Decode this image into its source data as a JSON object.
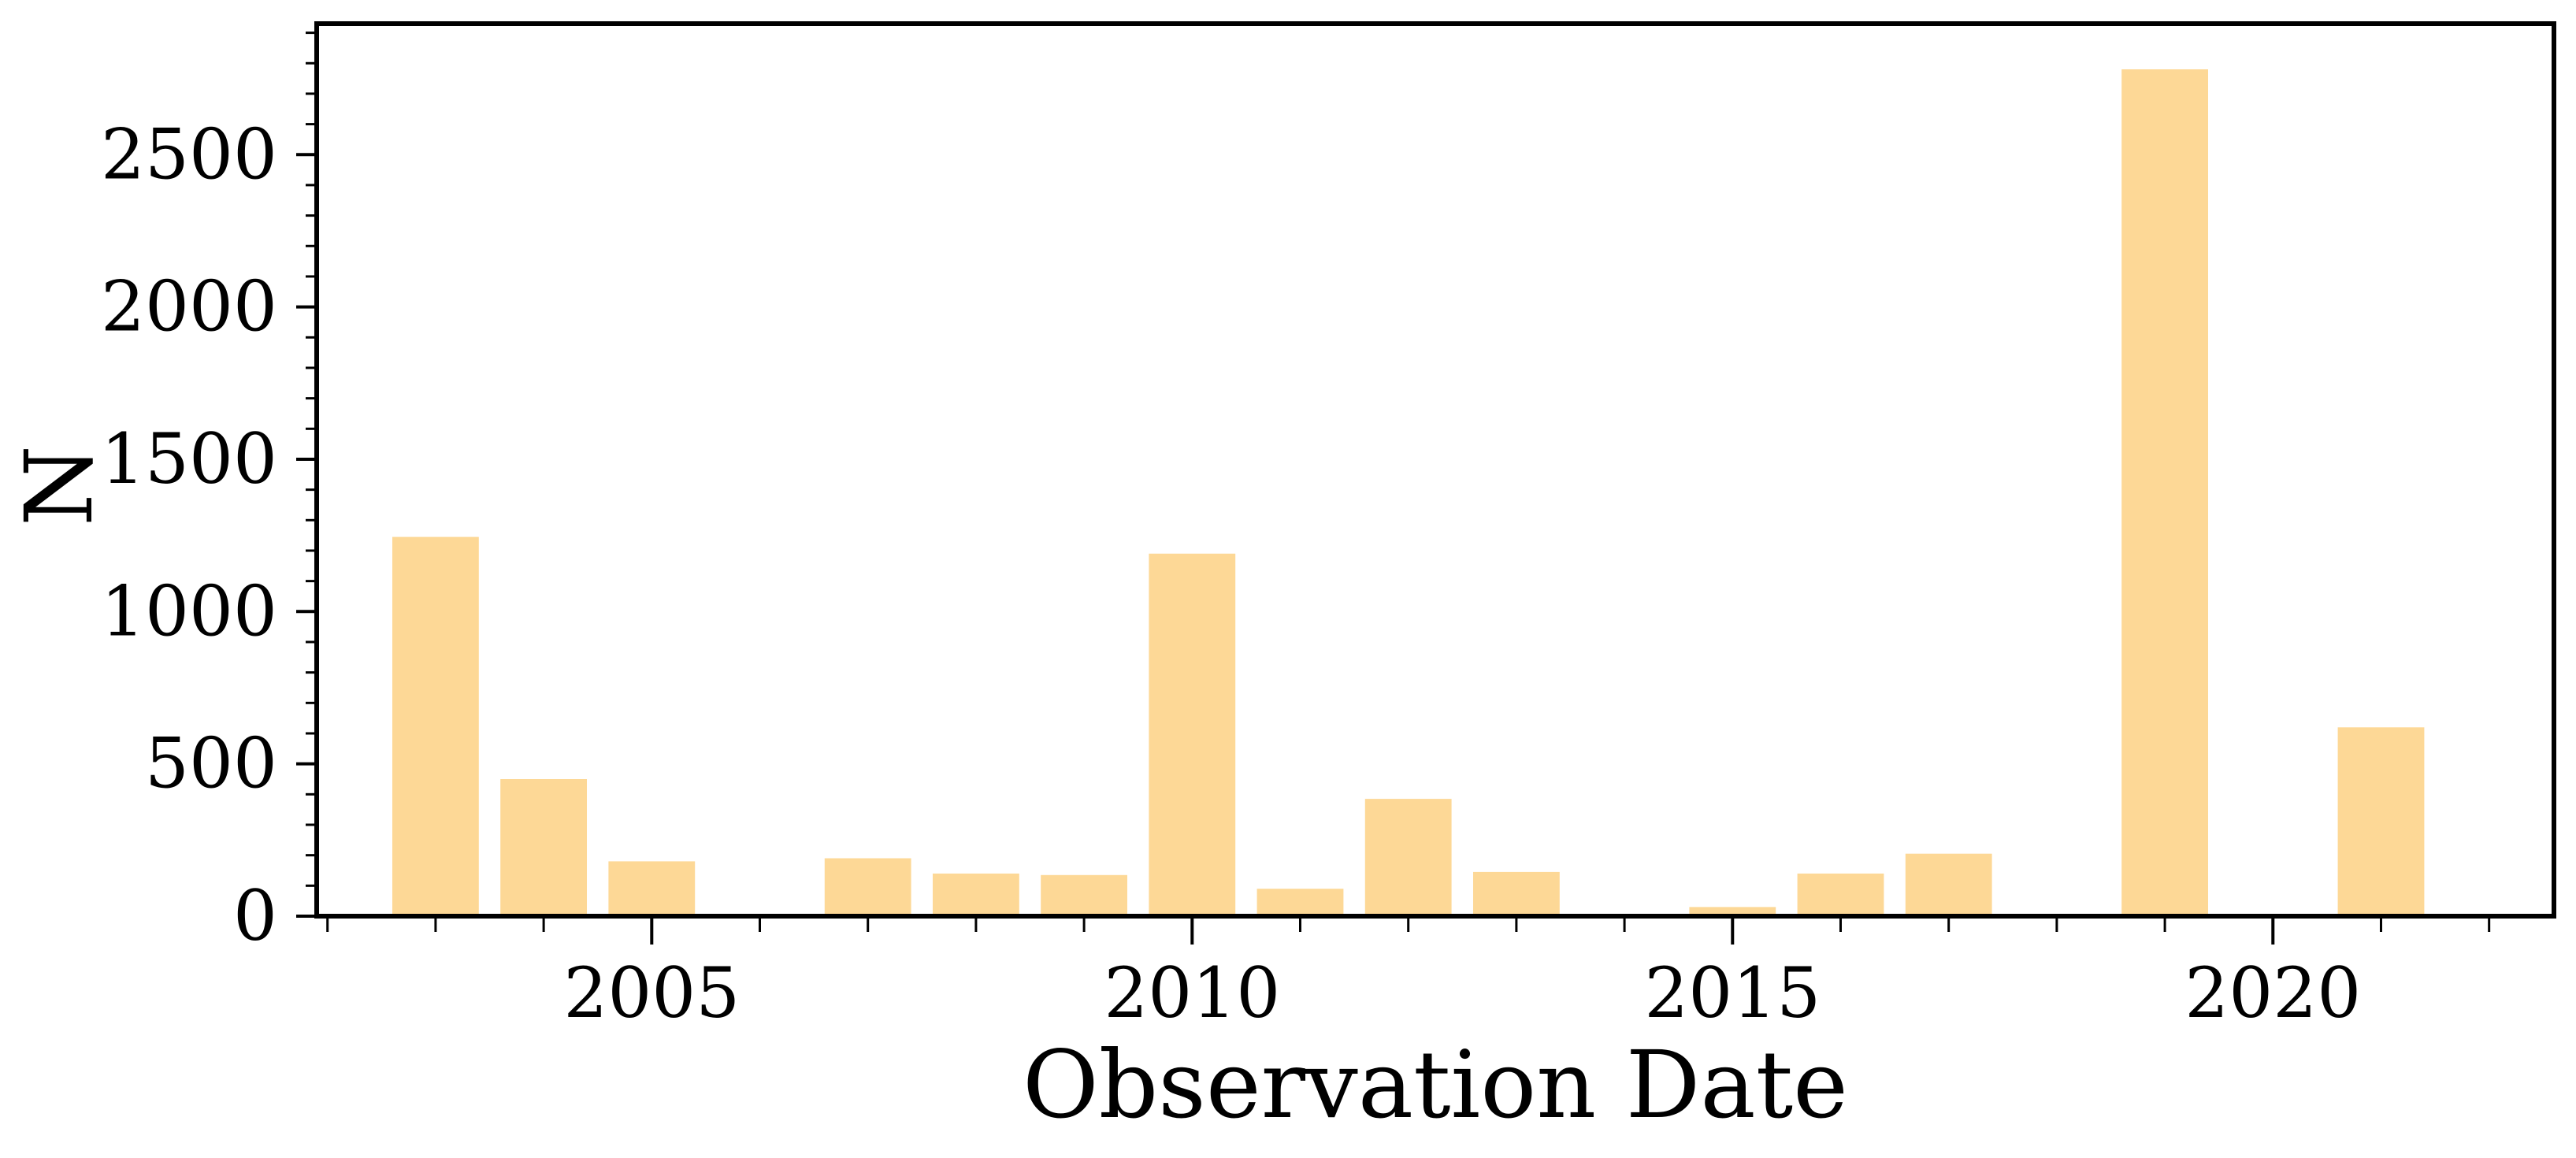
{
  "chart_data": {
    "type": "bar",
    "xlabel": "Observation Date",
    "ylabel": "N",
    "xlim": [
      2001.9,
      2022.6
    ],
    "ylim": [
      0,
      2930
    ],
    "x_ticks": [
      2005,
      2010,
      2015,
      2020
    ],
    "x_tick_labels": [
      "2005",
      "2010",
      "2015",
      "2020"
    ],
    "x_minor_ticks": [
      2002,
      2003,
      2004,
      2006,
      2007,
      2008,
      2009,
      2011,
      2012,
      2013,
      2014,
      2016,
      2017,
      2018,
      2019,
      2021,
      2022
    ],
    "y_ticks": [
      0,
      500,
      1000,
      1500,
      2000,
      2500
    ],
    "y_tick_labels": [
      "0",
      "500",
      "1000",
      "1500",
      "2000",
      "2500"
    ],
    "y_minor_step": 100,
    "bar_color": "#fdd896",
    "bar_width_years": 0.8,
    "x": [
      2003,
      2004,
      2005,
      2006,
      2007,
      2008,
      2009,
      2010,
      2011,
      2012,
      2013,
      2014,
      2015,
      2016,
      2017,
      2018,
      2019,
      2020,
      2021
    ],
    "values": [
      1245,
      450,
      180,
      0,
      190,
      140,
      135,
      1190,
      90,
      385,
      145,
      0,
      30,
      140,
      205,
      0,
      2780,
      0,
      620
    ],
    "grid": false,
    "legend": "none"
  }
}
